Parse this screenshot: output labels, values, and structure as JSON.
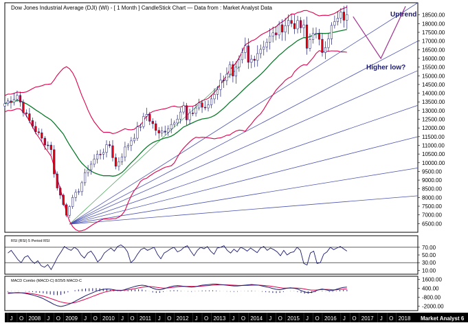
{
  "header": {
    "title": "Dow Jones Industrial Average (DJI) (WI) -  [ 1 Month ] CandleStick Chart — Data from : Market Analyst Data"
  },
  "annotations": {
    "uptrend": "Uptrend",
    "higher_low": "Higher low?",
    "watermark": "Market Analyst 6"
  },
  "colors": {
    "background": "#ffffff",
    "bollinger": "#e0004a",
    "moving_average": "#0a7a2a",
    "fan_lines": "#4a52b0",
    "candle_up": "#ffffff",
    "candle_down": "#e8000b",
    "candle_outline": "#1a1a6e",
    "projection": "#a03090",
    "rsi_line": "#1a1a6e",
    "macd_line": "#1a1a6e",
    "signal_line": "#e0004a",
    "axis_bar": "#000000"
  },
  "chart_data": [
    {
      "type": "candlestick",
      "panel": "price",
      "title": "Dow Jones Industrial Average (DJI) (WI) -  [ 1 Month ] CandleStick Chart — Data from : Market Analyst Data",
      "x_start": "2007-06",
      "x_end": "2018-08",
      "x_ticks": [
        "J",
        "O",
        "2008",
        "J",
        "O",
        "2009",
        "J",
        "O",
        "2010",
        "J",
        "O",
        "2011",
        "J",
        "O",
        "2012",
        "J",
        "O",
        "2013",
        "J",
        "O",
        "2014",
        "J",
        "O",
        "2015",
        "J",
        "O",
        "2016",
        "J",
        "O",
        "2017",
        "J",
        "O",
        "2018"
      ],
      "y_ticks": [
        "6500.00",
        "7000.00",
        "7500.00",
        "8000.00",
        "8500.00",
        "9000.00",
        "9500.00",
        "10000.00",
        "10500.00",
        "11000.00",
        "11500.00",
        "12000.00",
        "12500.00",
        "13000.00",
        "13500.00",
        "14000.00",
        "14500.00",
        "15000.00",
        "15500.00",
        "16000.00",
        "16500.00",
        "17000.00",
        "17500.00",
        "18000.00",
        "18500.00"
      ],
      "ylim": [
        6000,
        19200
      ],
      "grid": false,
      "close_anchors": [
        [
          "2007-06",
          13400
        ],
        [
          "2007-10",
          13900
        ],
        [
          "2008-01",
          12650
        ],
        [
          "2008-06",
          11350
        ],
        [
          "2008-09",
          10850
        ],
        [
          "2008-10",
          9300
        ],
        [
          "2008-11",
          8650
        ],
        [
          "2009-02",
          7060
        ],
        [
          "2009-03",
          7600
        ],
        [
          "2009-06",
          8450
        ],
        [
          "2009-09",
          9700
        ],
        [
          "2009-12",
          10430
        ],
        [
          "2010-04",
          11000
        ],
        [
          "2010-06",
          9780
        ],
        [
          "2010-09",
          10800
        ],
        [
          "2010-12",
          11580
        ],
        [
          "2011-04",
          12800
        ],
        [
          "2011-08",
          11600
        ],
        [
          "2011-12",
          12220
        ],
        [
          "2012-04",
          13200
        ],
        [
          "2012-05",
          12400
        ],
        [
          "2012-09",
          13440
        ],
        [
          "2012-11",
          13000
        ],
        [
          "2013-02",
          14050
        ],
        [
          "2013-07",
          15500
        ],
        [
          "2013-08",
          14800
        ],
        [
          "2013-12",
          16580
        ],
        [
          "2014-01",
          15700
        ],
        [
          "2014-06",
          16830
        ],
        [
          "2014-12",
          17820
        ],
        [
          "2015-02",
          18130
        ],
        [
          "2015-07",
          17700
        ],
        [
          "2015-08",
          16530
        ],
        [
          "2015-10",
          17660
        ],
        [
          "2016-01",
          16470
        ],
        [
          "2016-04",
          17770
        ],
        [
          "2016-07",
          18430
        ],
        [
          "2016-09",
          18310
        ]
      ],
      "overlays": [
        "Bollinger Bands",
        "Moving Average",
        "Fan lines from 2009 low"
      ],
      "fan_line_targets_at_right_edge": [
        19300,
        17000,
        15300,
        13300,
        11500,
        9700,
        8100
      ],
      "fan_origin": [
        "2009-03",
        6470
      ],
      "projection_path": [
        [
          "2016-11",
          18400
        ],
        [
          "2017-08",
          16000
        ],
        [
          "2018-04",
          19000
        ]
      ]
    },
    {
      "type": "line",
      "panel": "rsi",
      "title": "RSI (RSI) 5 Period RSI",
      "y_ticks": [
        "70.00",
        "50.00",
        "30.00",
        "10.00"
      ],
      "ylim": [
        0,
        100
      ],
      "reference_lines": [
        70,
        30
      ],
      "series": [
        {
          "values": [
            55,
            62,
            50,
            38,
            30,
            44,
            48,
            36,
            28,
            35,
            22,
            18,
            25,
            12,
            28,
            45,
            58,
            72,
            66,
            62,
            70,
            64,
            50,
            42,
            55,
            60,
            48,
            32,
            40,
            55,
            62,
            68,
            60,
            72,
            76,
            70,
            58,
            30,
            38,
            52,
            64,
            68,
            62,
            66,
            70,
            52,
            40,
            55,
            60,
            66,
            70,
            58,
            62,
            70,
            74,
            60,
            48,
            62,
            70,
            66,
            72,
            60,
            52,
            68,
            70,
            74,
            62,
            55,
            65,
            58,
            70,
            66,
            60,
            68,
            62,
            56,
            68,
            72,
            62,
            68,
            64,
            58,
            48,
            62,
            50,
            56,
            58,
            70,
            62,
            28,
            24,
            55,
            60,
            28,
            30,
            52,
            58,
            70,
            64,
            68,
            72,
            66,
            60
          ]
        }
      ]
    },
    {
      "type": "line",
      "panel": "macd",
      "title": "MACD Combo (MACD-C) 8/25/5 MACD-C",
      "y_ticks": [
        "1600.00",
        "400.00",
        "-800.00",
        "-2000.00"
      ],
      "ylim": [
        -2600,
        2000
      ],
      "series": [
        {
          "name": "MACD",
          "values": [
            -300,
            -250,
            -200,
            -180,
            -220,
            -300,
            -400,
            -500,
            -650,
            -800,
            -1000,
            -1250,
            -1500,
            -1750,
            -1950,
            -2050,
            -1950,
            -1800,
            -1600,
            -1350,
            -1100,
            -850,
            -600,
            -400,
            -200,
            0,
            150,
            250,
            300,
            280,
            200,
            100,
            80,
            200,
            350,
            500,
            650,
            750,
            800,
            750,
            600,
            400,
            250,
            200,
            300,
            450,
            600,
            700,
            750,
            700,
            650,
            600,
            550,
            600,
            700,
            800,
            850,
            900,
            950,
            950,
            900,
            850,
            800,
            750,
            700,
            700,
            750,
            800,
            850,
            900,
            850,
            800,
            700,
            600,
            500,
            350,
            250,
            200,
            300,
            400,
            450,
            400,
            300,
            100,
            -100,
            -200,
            -150,
            0,
            200,
            300,
            200,
            100,
            100,
            250,
            400,
            500,
            550
          ]
        },
        {
          "name": "Signal",
          "values": [
            -200,
            -220,
            -220,
            -210,
            -215,
            -240,
            -290,
            -350,
            -430,
            -540,
            -660,
            -800,
            -960,
            -1120,
            -1290,
            -1430,
            -1540,
            -1620,
            -1600,
            -1510,
            -1380,
            -1220,
            -1050,
            -880,
            -700,
            -520,
            -340,
            -180,
            -40,
            60,
            110,
            130,
            120,
            140,
            190,
            260,
            350,
            440,
            530,
            600,
            620,
            590,
            530,
            460,
            420,
            430,
            470,
            530,
            590,
            630,
            640,
            650,
            640,
            640,
            650,
            680,
            720,
            760,
            800,
            840,
            860,
            860,
            850,
            830,
            800,
            780,
            770,
            770,
            780,
            800,
            810,
            810,
            790,
            750,
            700,
            630,
            550,
            470,
            420,
            410,
            420,
            430,
            420,
            380,
            300,
            210,
            150,
            150,
            180,
            220,
            240,
            220,
            190,
            190,
            220,
            270,
            320
          ]
        }
      ]
    }
  ]
}
